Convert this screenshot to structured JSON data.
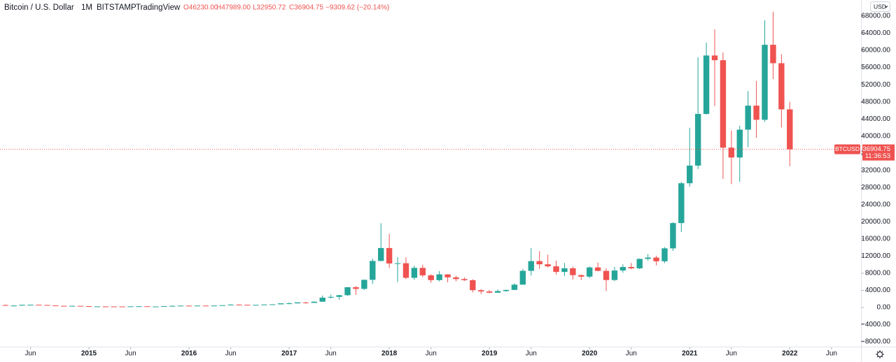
{
  "header": {
    "title": "Bitcoin / U.S. Dollar",
    "interval": "1M",
    "exchange": "BITSTAMP",
    "source": "TradingView",
    "ohlc": [
      "O46230.00",
      "H47989.00",
      "L32950.72",
      "C36904.75",
      "−9309.62 (−20.14%)"
    ],
    "currency": "USD"
  },
  "chart_data": {
    "type": "candlestick",
    "symbol": "BTCUSD",
    "countdown": "11:36:53",
    "up_color": "#26a69a",
    "down_color": "#ef5350",
    "grid": false,
    "x": [
      "2014-03",
      "2014-04",
      "2014-05",
      "2014-06",
      "2014-07",
      "2014-08",
      "2014-09",
      "2014-10",
      "2014-11",
      "2014-12",
      "2015-01",
      "2015-02",
      "2015-03",
      "2015-04",
      "2015-05",
      "2015-06",
      "2015-07",
      "2015-08",
      "2015-09",
      "2015-10",
      "2015-11",
      "2015-12",
      "2016-01",
      "2016-02",
      "2016-03",
      "2016-04",
      "2016-05",
      "2016-06",
      "2016-07",
      "2016-08",
      "2016-09",
      "2016-10",
      "2016-11",
      "2016-12",
      "2017-01",
      "2017-02",
      "2017-03",
      "2017-04",
      "2017-05",
      "2017-06",
      "2017-07",
      "2017-08",
      "2017-09",
      "2017-10",
      "2017-11",
      "2017-12",
      "2018-01",
      "2018-02",
      "2018-03",
      "2018-04",
      "2018-05",
      "2018-06",
      "2018-07",
      "2018-08",
      "2018-09",
      "2018-10",
      "2018-11",
      "2018-12",
      "2019-01",
      "2019-02",
      "2019-03",
      "2019-04",
      "2019-05",
      "2019-06",
      "2019-07",
      "2019-08",
      "2019-09",
      "2019-10",
      "2019-11",
      "2019-12",
      "2020-01",
      "2020-02",
      "2020-03",
      "2020-04",
      "2020-05",
      "2020-06",
      "2020-07",
      "2020-08",
      "2020-09",
      "2020-10",
      "2020-11",
      "2020-12",
      "2021-01",
      "2021-02",
      "2021-03",
      "2021-04",
      "2021-05",
      "2021-06",
      "2021-07",
      "2021-08",
      "2021-09",
      "2021-10",
      "2021-11",
      "2021-12",
      "2022-01"
    ],
    "open": [
      560,
      445,
      448,
      628,
      640,
      585,
      480,
      387,
      338,
      378,
      320,
      217,
      254,
      244,
      236,
      230,
      263,
      284,
      230,
      236,
      314,
      377,
      430,
      368,
      437,
      416,
      448,
      531,
      673,
      624,
      573,
      609,
      698,
      742,
      966,
      970,
      1190,
      1080,
      1350,
      2300,
      2480,
      2870,
      4730,
      4340,
      6460,
      10860,
      13880,
      10270,
      10330,
      6930,
      9240,
      7500,
      6390,
      7730,
      7030,
      6630,
      6370,
      4040,
      3740,
      3450,
      3830,
      4100,
      5330,
      8550,
      10820,
      10080,
      9600,
      8300,
      9150,
      7550,
      7200,
      9350,
      8540,
      6410,
      8630,
      9450,
      9140,
      11340,
      11650,
      10780,
      13800,
      19700,
      28990,
      33110,
      45160,
      58800,
      57700,
      37300,
      35000,
      41500,
      47100,
      43800,
      61300,
      57000,
      46230
    ],
    "high": [
      718,
      545,
      630,
      680,
      650,
      600,
      500,
      415,
      460,
      385,
      320,
      265,
      300,
      260,
      247,
      268,
      317,
      285,
      248,
      333,
      502,
      465,
      463,
      443,
      439,
      467,
      549,
      780,
      704,
      629,
      623,
      741,
      755,
      979,
      1165,
      1210,
      1300,
      1420,
      2800,
      3000,
      2950,
      4740,
      5000,
      6480,
      11400,
      19666,
      17180,
      11790,
      11700,
      9750,
      9990,
      7780,
      8490,
      7760,
      7410,
      7000,
      6590,
      4240,
      4110,
      4210,
      4140,
      5640,
      9000,
      13880,
      13130,
      12330,
      10950,
      10380,
      9520,
      7750,
      9580,
      10500,
      9190,
      9460,
      10080,
      10400,
      11440,
      12470,
      12070,
      14100,
      19870,
      29300,
      41950,
      58350,
      61800,
      64900,
      59500,
      41300,
      42400,
      50500,
      52900,
      67000,
      69000,
      59100,
      47989
    ],
    "low": [
      430,
      340,
      420,
      550,
      565,
      440,
      370,
      275,
      315,
      300,
      165,
      212,
      236,
      214,
      223,
      220,
      255,
      195,
      224,
      236,
      300,
      346,
      355,
      362,
      394,
      412,
      436,
      523,
      480,
      465,
      568,
      605,
      675,
      740,
      750,
      915,
      885,
      1070,
      1350,
      2100,
      1840,
      2700,
      2970,
      4100,
      5500,
      10800,
      9200,
      5920,
      6600,
      6430,
      7040,
      5760,
      6070,
      5880,
      6100,
      6180,
      3550,
      3130,
      3350,
      3390,
      3670,
      4090,
      5330,
      7450,
      9050,
      9330,
      7710,
      7300,
      6520,
      6430,
      6850,
      8440,
      3860,
      6150,
      8100,
      8900,
      8970,
      10950,
      9850,
      10370,
      13200,
      17600,
      28150,
      32300,
      45000,
      47000,
      30000,
      28800,
      29300,
      37400,
      39600,
      43300,
      53300,
      42000,
      32950.72
    ],
    "close": [
      445,
      448,
      628,
      640,
      585,
      480,
      387,
      338,
      378,
      320,
      217,
      254,
      244,
      236,
      230,
      263,
      284,
      230,
      236,
      314,
      377,
      430,
      368,
      437,
      416,
      448,
      531,
      673,
      624,
      573,
      609,
      698,
      742,
      966,
      970,
      1190,
      1080,
      1350,
      2300,
      2480,
      2870,
      4730,
      4340,
      6460,
      10860,
      13880,
      10270,
      10330,
      6930,
      9240,
      7500,
      6390,
      7730,
      7030,
      6630,
      6370,
      4040,
      3740,
      3450,
      3830,
      4100,
      5330,
      8550,
      10820,
      10080,
      9600,
      8300,
      9150,
      7550,
      7200,
      9350,
      8540,
      6410,
      8630,
      9450,
      9140,
      11340,
      11650,
      10780,
      13800,
      19700,
      28990,
      33110,
      45160,
      58800,
      57700,
      37300,
      35000,
      41500,
      47100,
      43800,
      61300,
      57000,
      46230,
      36904.75
    ],
    "ylim": [
      -10000,
      70000
    ],
    "yticks": [
      {
        "value": 68000,
        "label": "68000.00"
      },
      {
        "value": 64000,
        "label": "64000.00"
      },
      {
        "value": 60000,
        "label": "60000.00"
      },
      {
        "value": 56000,
        "label": "56000.00"
      },
      {
        "value": 52000,
        "label": "52000.00"
      },
      {
        "value": 48000,
        "label": "48000.00"
      },
      {
        "value": 44000,
        "label": "44000.00"
      },
      {
        "value": 40000,
        "label": "40000.00"
      },
      {
        "value": 36000,
        "label": "36000.00"
      },
      {
        "value": 32000,
        "label": "32000.00"
      },
      {
        "value": 28000,
        "label": "28000.00"
      },
      {
        "value": 24000,
        "label": "24000.00"
      },
      {
        "value": 20000,
        "label": "20000.00"
      },
      {
        "value": 16000,
        "label": "16000.00"
      },
      {
        "value": 12000,
        "label": "12000.00"
      },
      {
        "value": 8000,
        "label": "8000.00"
      },
      {
        "value": 4000,
        "label": "4000.00"
      },
      {
        "value": 0,
        "label": "0.00"
      },
      {
        "value": -4000,
        "label": "−4000.00"
      },
      {
        "value": -8000,
        "label": "−8000.00"
      }
    ],
    "xticks": [
      {
        "value": "2014-06",
        "label": "Jun"
      },
      {
        "value": "2015-01",
        "label": "2015"
      },
      {
        "value": "2015-06",
        "label": "Jun"
      },
      {
        "value": "2016-01",
        "label": "2016"
      },
      {
        "value": "2016-06",
        "label": "Jun"
      },
      {
        "value": "2017-01",
        "label": "2017"
      },
      {
        "value": "2017-06",
        "label": "Jun"
      },
      {
        "value": "2018-01",
        "label": "2018"
      },
      {
        "value": "2018-06",
        "label": "Jun"
      },
      {
        "value": "2019-01",
        "label": "2019"
      },
      {
        "value": "2019-06",
        "label": "Jun"
      },
      {
        "value": "2020-01",
        "label": "2020"
      },
      {
        "value": "2020-06",
        "label": "Jun"
      },
      {
        "value": "2021-01",
        "label": "2021"
      },
      {
        "value": "2021-06",
        "label": "Jun"
      },
      {
        "value": "2022-01",
        "label": "2022"
      },
      {
        "value": "2022-06",
        "label": "Jun"
      }
    ]
  }
}
